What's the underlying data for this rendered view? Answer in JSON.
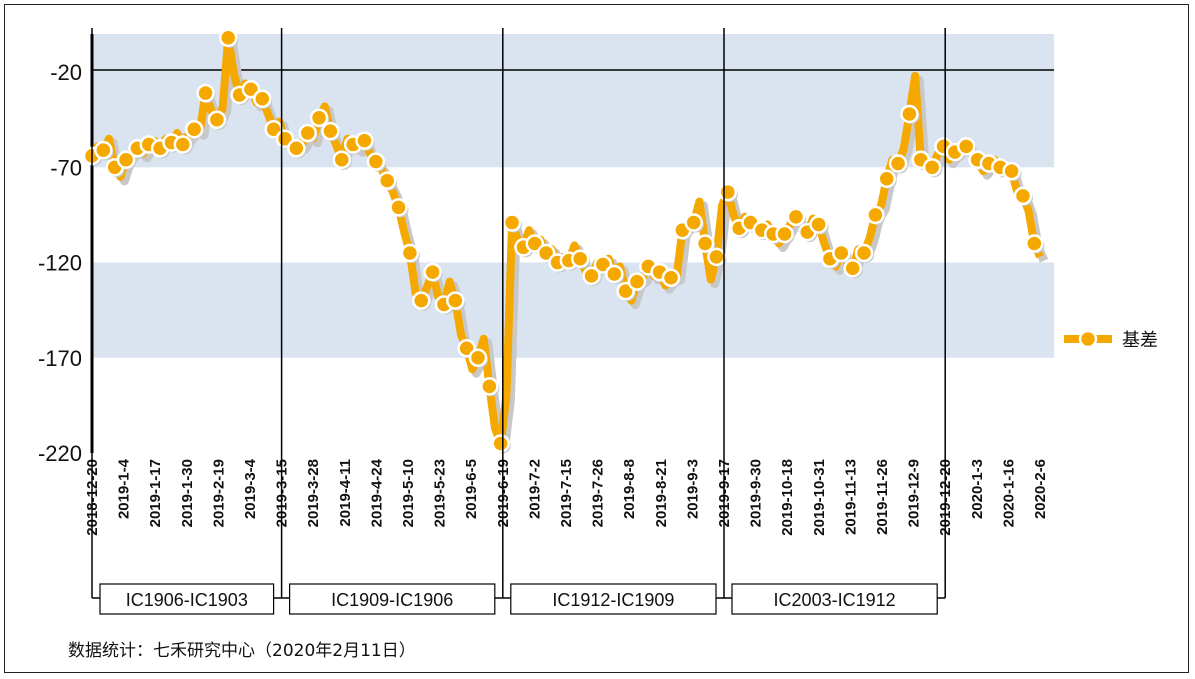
{
  "footnote": "数据统计：七禾研究中心（2020年2月11日）",
  "colors": {
    "series": "#F5A800",
    "band": "#D9E4F0",
    "shadow": "#C8C8C8"
  },
  "chart_data": {
    "type": "line",
    "title": "",
    "xlabel": "",
    "ylabel": "",
    "ylim": [
      -220,
      0
    ],
    "yticks": [
      -20,
      -70,
      -120,
      -170,
      -220
    ],
    "reference_line": 0,
    "grid": "alternating horizontal bands",
    "legend_position": "right",
    "x_tick_labels": [
      "2018-12-20",
      "2019-1-4",
      "2019-1-17",
      "2019-1-30",
      "2019-2-19",
      "2019-3-4",
      "2019-3-15",
      "2019-3-28",
      "2019-4-11",
      "2019-4-24",
      "2019-5-10",
      "2019-5-23",
      "2019-6-5",
      "2019-6-19",
      "2019-7-2",
      "2019-7-15",
      "2019-7-26",
      "2019-8-8",
      "2019-8-21",
      "2019-9-3",
      "2019-9-17",
      "2019-9-30",
      "2019-10-18",
      "2019-10-31",
      "2019-11-13",
      "2019-11-26",
      "2019-12-9",
      "2019-12-20",
      "2020-1-3",
      "2020-1-16",
      "2020-2-6"
    ],
    "contracts": [
      "IC1906-IC1903",
      "IC1909-IC1906",
      "IC1912-IC1909",
      "IC2003-IC1912"
    ],
    "contract_boundaries": [
      "2018-12-20",
      "2019-3-15",
      "2019-6-19",
      "2019-9-17",
      "2019-12-20"
    ],
    "series": [
      {
        "name": "基差",
        "values": [
          -64,
          -59,
          -61,
          -55,
          -70,
          -75,
          -66,
          -62,
          -60,
          -63,
          -58,
          -56,
          -60,
          -55,
          -57,
          -52,
          -58,
          -53,
          -50,
          -51,
          -31,
          -40,
          -45,
          -39,
          -2,
          -21,
          -32,
          -26,
          -29,
          -36,
          -34,
          -42,
          -50,
          -46,
          -55,
          -56,
          -60,
          -58,
          -52,
          -55,
          -44,
          -38,
          -51,
          -58,
          -66,
          -55,
          -58,
          -60,
          -56,
          -63,
          -67,
          -71,
          -77,
          -83,
          -91,
          -104,
          -115,
          -136,
          -140,
          -133,
          -125,
          -138,
          -142,
          -130,
          -140,
          -158,
          -165,
          -176,
          -170,
          -160,
          -185,
          -207,
          -215,
          -190,
          -99,
          -108,
          -112,
          -103,
          -110,
          -108,
          -115,
          -113,
          -120,
          -117,
          -119,
          -111,
          -118,
          -125,
          -127,
          -120,
          -121,
          -118,
          -126,
          -122,
          -135,
          -140,
          -130,
          -128,
          -122,
          -127,
          -125,
          -132,
          -128,
          -127,
          -103,
          -100,
          -99,
          -88,
          -110,
          -129,
          -117,
          -90,
          -83,
          -95,
          -102,
          -96,
          -99,
          -100,
          -103,
          -100,
          -105,
          -110,
          -105,
          -100,
          -96,
          -100,
          -104,
          -97,
          -100,
          -110,
          -118,
          -122,
          -115,
          -120,
          -123,
          -113,
          -115,
          -107,
          -95,
          -90,
          -76,
          -66,
          -68,
          -60,
          -42,
          -22,
          -66,
          -69,
          -70,
          -63,
          -59,
          -66,
          -62,
          -60,
          -59,
          -63,
          -66,
          -72,
          -68,
          -66,
          -70,
          -72,
          -72,
          -83,
          -85,
          -93,
          -110,
          -117
        ]
      }
    ]
  }
}
